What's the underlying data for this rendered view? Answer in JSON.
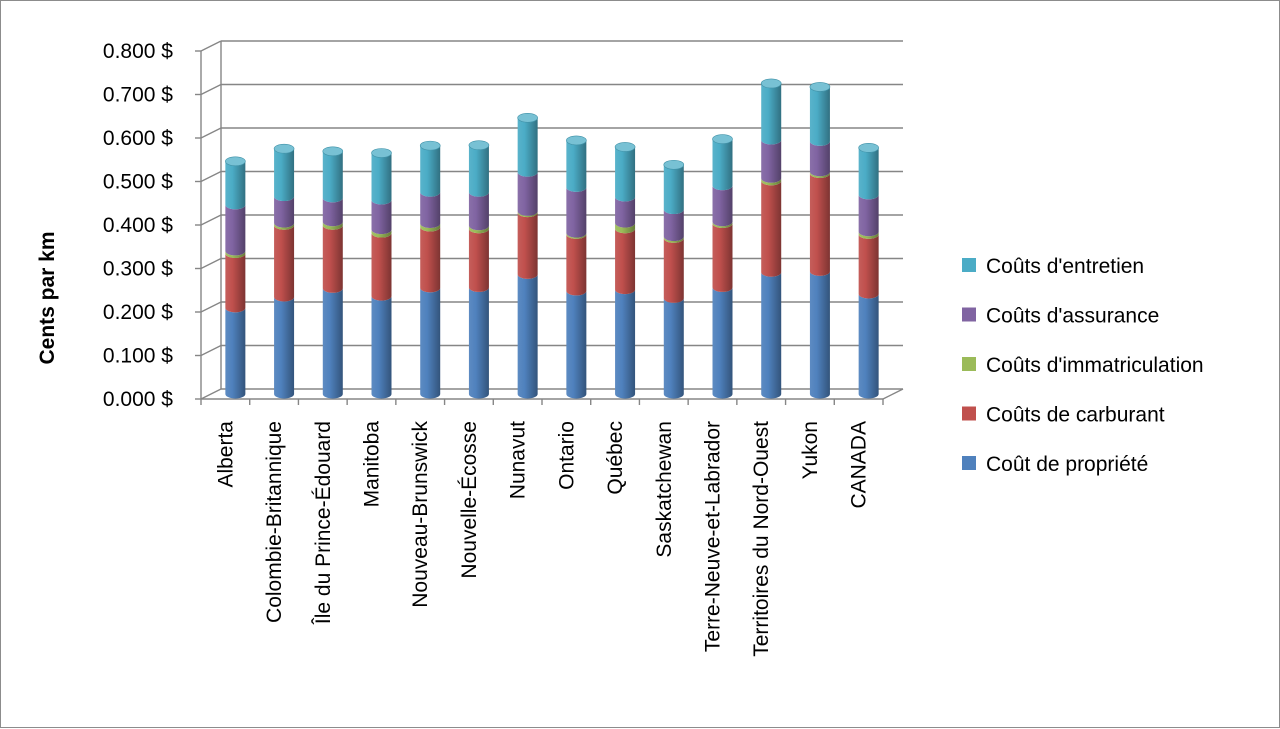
{
  "chart_data": {
    "type": "bar",
    "stacked": true,
    "three_d": true,
    "title": "",
    "xlabel": "",
    "ylabel": "Cents par km",
    "ylim": [
      0,
      0.8
    ],
    "yticks": [
      "0.000 $",
      "0.100 $",
      "0.200 $",
      "0.300 $",
      "0.400 $",
      "0.500 $",
      "0.600 $",
      "0.700 $",
      "0.800 $"
    ],
    "grid": true,
    "legend_position": "right",
    "categories": [
      "Alberta",
      "Colombie-Britannique",
      "Île du Prince-Édouard",
      "Manitoba",
      "Nouveau-Brunswick",
      "Nouvelle-Écosse",
      "Nunavut",
      "Ontario",
      "Québec",
      "Saskatchewan",
      "Terre-Neuve-et-Labrador",
      "Territoires du Nord-Ouest",
      "Yukon",
      "CANADA"
    ],
    "series": [
      {
        "name": "Coût de propriété",
        "color": "#4F81BD",
        "values": [
          0.198,
          0.223,
          0.243,
          0.225,
          0.244,
          0.245,
          0.275,
          0.237,
          0.24,
          0.22,
          0.245,
          0.28,
          0.282,
          0.23
        ]
      },
      {
        "name": "Coûts de carburant",
        "color": "#C0504D",
        "values": [
          0.125,
          0.165,
          0.145,
          0.145,
          0.14,
          0.135,
          0.142,
          0.13,
          0.14,
          0.138,
          0.147,
          0.21,
          0.225,
          0.137
        ]
      },
      {
        "name": "Coûts d'immatriculation",
        "color": "#9BBB59",
        "values": [
          0.006,
          0.005,
          0.008,
          0.008,
          0.008,
          0.007,
          0.003,
          0.003,
          0.013,
          0.004,
          0.004,
          0.006,
          0.004,
          0.006
        ]
      },
      {
        "name": "Coûts d'assurance",
        "color": "#8064A2",
        "values": [
          0.106,
          0.061,
          0.055,
          0.068,
          0.072,
          0.077,
          0.09,
          0.105,
          0.06,
          0.062,
          0.083,
          0.088,
          0.07,
          0.085
        ]
      },
      {
        "name": "Coûts d'entretien",
        "color": "#4BACC6",
        "values": [
          0.1,
          0.11,
          0.107,
          0.108,
          0.107,
          0.108,
          0.125,
          0.108,
          0.115,
          0.103,
          0.107,
          0.13,
          0.125,
          0.108
        ]
      }
    ]
  }
}
